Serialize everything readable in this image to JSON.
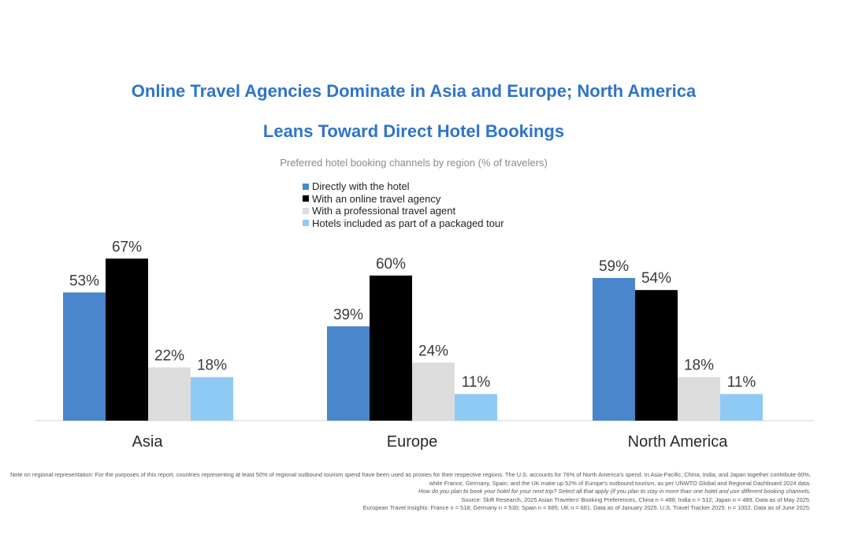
{
  "chart_data": {
    "type": "bar",
    "title_line1": "Online Travel Agencies Dominate in Asia and Europe; North America",
    "title_line2": "Leans Toward Direct Hotel Bookings",
    "subtitle": "Preferred hotel booking channels by region (% of travelers)",
    "categories": [
      "Asia",
      "Europe",
      "North America"
    ],
    "series": [
      {
        "name": "Directly with the hotel",
        "color": "#4a86cc",
        "values": [
          53,
          39,
          59
        ],
        "labels": [
          "53%",
          "39%",
          "59%"
        ]
      },
      {
        "name": "With an online travel agency",
        "color": "#000000",
        "values": [
          67,
          60,
          54
        ],
        "labels": [
          "67%",
          "60%",
          "54%"
        ]
      },
      {
        "name": "With a professional travel agent",
        "color": "#dcdcdc",
        "values": [
          22,
          24,
          18
        ],
        "labels": [
          "22%",
          "24%",
          "18%"
        ]
      },
      {
        "name": "Hotels included as part of a packaged tour",
        "color": "#8fcaf5",
        "values": [
          18,
          11,
          11
        ],
        "labels": [
          "18%",
          "11%",
          "11%"
        ]
      }
    ],
    "ylim": [
      0,
      100
    ],
    "grid": false,
    "legend_position": "top-center"
  },
  "notes": {
    "line1": "Note on regional representation: For the purposes of this report, countries representing at least 50% of regional outbound tourism spend have been used as proxies for their respective regions. The U.S. accounts for 76% of North America's spend. In Asia-Pacific, China, India, and Japan together contribute 60%, while France, Germany, Spain, and the UK make up 52% of Europe's outbound tourism, as per UNWTO Global and Regional Dashboard 2024 data.",
    "line2": "How do you plan to book your hotel for your next trip? Select all that apply (if you plan to stay in more than one hotel and use different booking channels.",
    "line3": "Source: Skift Research, 2025 Asian Travelers' Booking Preferences, China n = 488; India n = 512; Japan n = 489. Data as of May 2025.",
    "line4": "European Travel Insights: France n = 518; Germany n = 530; Spain n = 685; UK n = 661. Data as of January 2025. U.S. Travel Tracker 2025: n = 1002. Data as of June 2025."
  }
}
